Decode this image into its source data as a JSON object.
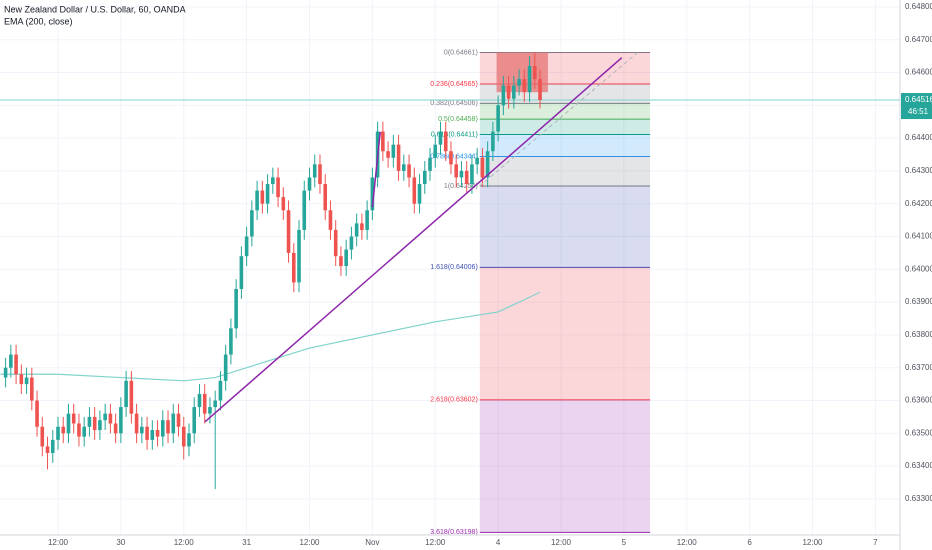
{
  "chart_data": {
    "type": "candlestick",
    "title": "New Zealand Dollar / U.S. Dollar, 60, OANDA",
    "subtitle": "EMA (200, close)",
    "up_color": "#26a69a",
    "down_color": "#ef5350",
    "grid": true,
    "xlim": [
      -11.07,
      160.7
    ],
    "ylim": [
      0.6319,
      0.64821
    ],
    "xticks": [
      {
        "value": 0,
        "label": "12:00"
      },
      {
        "value": 12,
        "label": "30"
      },
      {
        "value": 24,
        "label": "12:00"
      },
      {
        "value": 36,
        "label": "31"
      },
      {
        "value": 48,
        "label": "12:00"
      },
      {
        "value": 60,
        "label": "Nov"
      },
      {
        "value": 72,
        "label": "12:00"
      },
      {
        "value": 84,
        "label": "4"
      },
      {
        "value": 96,
        "label": "12:00"
      },
      {
        "value": 108,
        "label": "5"
      },
      {
        "value": 120,
        "label": "12:00"
      },
      {
        "value": 132,
        "label": "6"
      },
      {
        "value": 144,
        "label": "12:00"
      },
      {
        "value": 156,
        "label": "7"
      }
    ],
    "yticks": [
      {
        "value": 0.648,
        "label": "0.64800"
      },
      {
        "value": 0.647,
        "label": "0.64700"
      },
      {
        "value": 0.646,
        "label": "0.64600"
      },
      {
        "value": 0.645,
        "label": "0.64500"
      },
      {
        "value": 0.644,
        "label": "0.64400"
      },
      {
        "value": 0.643,
        "label": "0.64300"
      },
      {
        "value": 0.642,
        "label": "0.64200"
      },
      {
        "value": 0.641,
        "label": "0.64100"
      },
      {
        "value": 0.64,
        "label": "0.64000"
      },
      {
        "value": 0.639,
        "label": "0.63900"
      },
      {
        "value": 0.638,
        "label": "0.63800"
      },
      {
        "value": 0.637,
        "label": "0.63700"
      },
      {
        "value": 0.636,
        "label": "0.63600"
      },
      {
        "value": 0.635,
        "label": "0.63500"
      },
      {
        "value": 0.634,
        "label": "0.63400"
      },
      {
        "value": 0.633,
        "label": "0.63300"
      }
    ],
    "x": [
      -10,
      -9,
      -8,
      -7,
      -6,
      -5,
      -4,
      -3,
      -2,
      -1,
      0,
      1,
      2,
      3,
      4,
      5,
      6,
      7,
      8,
      9,
      10,
      11,
      12,
      13,
      14,
      15,
      16,
      17,
      18,
      19,
      20,
      21,
      22,
      23,
      24,
      25,
      26,
      27,
      28,
      29,
      30,
      31,
      32,
      33,
      34,
      35,
      36,
      37,
      38,
      39,
      40,
      41,
      42,
      43,
      44,
      45,
      46,
      47,
      48,
      49,
      50,
      51,
      52,
      53,
      54,
      55,
      56,
      57,
      58,
      59,
      60,
      61,
      62,
      63,
      64,
      65,
      66,
      67,
      68,
      69,
      70,
      71,
      72,
      73,
      74,
      75,
      76,
      77,
      78,
      79,
      80,
      81,
      82,
      83,
      84,
      85,
      86,
      87,
      88,
      89,
      90,
      91,
      92
    ],
    "open": [
      0.6367,
      0.637,
      0.6374,
      0.6368,
      0.6365,
      0.6367,
      0.636,
      0.6352,
      0.6346,
      0.6344,
      0.6348,
      0.6352,
      0.635,
      0.6356,
      0.6353,
      0.6349,
      0.6352,
      0.6355,
      0.6351,
      0.6354,
      0.6356,
      0.6353,
      0.635,
      0.6358,
      0.6366,
      0.6356,
      0.635,
      0.6352,
      0.6348,
      0.6351,
      0.6349,
      0.6354,
      0.635,
      0.6356,
      0.6352,
      0.6346,
      0.635,
      0.6358,
      0.6362,
      0.6356,
      0.6358,
      0.636,
      0.6366,
      0.6374,
      0.6382,
      0.6394,
      0.6404,
      0.641,
      0.6418,
      0.6424,
      0.642,
      0.6426,
      0.6428,
      0.6422,
      0.6418,
      0.6405,
      0.6396,
      0.6412,
      0.6424,
      0.6428,
      0.6432,
      0.6426,
      0.6418,
      0.6412,
      0.6404,
      0.6401,
      0.6406,
      0.641,
      0.6414,
      0.6412,
      0.6418,
      0.6428,
      0.6442,
      0.6436,
      0.6434,
      0.6438,
      0.643,
      0.6432,
      0.6428,
      0.642,
      0.6426,
      0.643,
      0.6434,
      0.6438,
      0.6442,
      0.6436,
      0.6432,
      0.6428,
      0.643,
      0.6426,
      0.6432,
      0.6434,
      0.6428,
      0.6436,
      0.6442,
      0.645,
      0.6456,
      0.6452,
      0.6456,
      0.6458,
      0.6454,
      0.6462,
      0.6458
    ],
    "high": [
      0.6373,
      0.6377,
      0.6377,
      0.6371,
      0.637,
      0.637,
      0.6363,
      0.6355,
      0.6349,
      0.6351,
      0.6355,
      0.6355,
      0.6359,
      0.6359,
      0.6356,
      0.6355,
      0.6358,
      0.6358,
      0.6357,
      0.6359,
      0.6359,
      0.6356,
      0.6361,
      0.6369,
      0.6369,
      0.6359,
      0.6355,
      0.6355,
      0.6354,
      0.6354,
      0.6357,
      0.6357,
      0.6359,
      0.6359,
      0.6355,
      0.6353,
      0.6361,
      0.6365,
      0.6365,
      0.6361,
      0.6363,
      0.6369,
      0.6377,
      0.6385,
      0.6397,
      0.6407,
      0.6413,
      0.6421,
      0.6427,
      0.6427,
      0.6429,
      0.6431,
      0.6431,
      0.6425,
      0.6421,
      0.6408,
      0.6415,
      0.6427,
      0.6431,
      0.6435,
      0.6435,
      0.6429,
      0.6421,
      0.6415,
      0.6407,
      0.6409,
      0.6413,
      0.6417,
      0.6417,
      0.6421,
      0.6431,
      0.6445,
      0.6445,
      0.6439,
      0.6441,
      0.6441,
      0.6435,
      0.6435,
      0.6431,
      0.6429,
      0.6433,
      0.6437,
      0.6441,
      0.6445,
      0.6445,
      0.6439,
      0.6435,
      0.6433,
      0.6433,
      0.6435,
      0.6437,
      0.6437,
      0.6439,
      0.6445,
      0.6453,
      0.6459,
      0.6459,
      0.6459,
      0.6461,
      0.6461,
      0.6465,
      0.64661,
      0.6461
    ],
    "low": [
      0.6364,
      0.6367,
      0.6365,
      0.6362,
      0.6362,
      0.6357,
      0.6349,
      0.6343,
      0.6339,
      0.6341,
      0.6345,
      0.6347,
      0.6347,
      0.635,
      0.6346,
      0.6346,
      0.6349,
      0.6348,
      0.6348,
      0.6351,
      0.635,
      0.6347,
      0.6347,
      0.6355,
      0.6353,
      0.6347,
      0.6347,
      0.6345,
      0.6345,
      0.6346,
      0.6346,
      0.6347,
      0.6347,
      0.6349,
      0.6342,
      0.6343,
      0.6347,
      0.6355,
      0.6353,
      0.6353,
      0.6333,
      0.6357,
      0.6363,
      0.6371,
      0.6379,
      0.6391,
      0.6401,
      0.6407,
      0.6415,
      0.6417,
      0.6417,
      0.6423,
      0.6419,
      0.6415,
      0.6402,
      0.6393,
      0.6393,
      0.6409,
      0.6421,
      0.6425,
      0.6423,
      0.6415,
      0.6409,
      0.6401,
      0.6398,
      0.6398,
      0.6403,
      0.6407,
      0.6409,
      0.6409,
      0.6415,
      0.6425,
      0.6433,
      0.6431,
      0.6431,
      0.6427,
      0.6427,
      0.6425,
      0.6417,
      0.6417,
      0.6423,
      0.6427,
      0.6431,
      0.6435,
      0.6433,
      0.6429,
      0.6425,
      0.6425,
      0.6423,
      0.6423,
      0.6429,
      0.6425,
      0.6425,
      0.6433,
      0.6439,
      0.6447,
      0.6449,
      0.6449,
      0.6453,
      0.6451,
      0.6451,
      0.6455,
      0.6449
    ],
    "close": [
      0.637,
      0.6374,
      0.6368,
      0.6365,
      0.6367,
      0.636,
      0.6352,
      0.6346,
      0.6344,
      0.6348,
      0.6352,
      0.635,
      0.6356,
      0.6353,
      0.6349,
      0.6352,
      0.6355,
      0.6351,
      0.6354,
      0.6356,
      0.6353,
      0.635,
      0.6358,
      0.6366,
      0.6356,
      0.635,
      0.6352,
      0.6348,
      0.6351,
      0.6349,
      0.6354,
      0.635,
      0.6356,
      0.6352,
      0.6346,
      0.635,
      0.6358,
      0.6362,
      0.6356,
      0.6358,
      0.636,
      0.6366,
      0.6374,
      0.6382,
      0.6394,
      0.6404,
      0.641,
      0.6418,
      0.6424,
      0.642,
      0.6426,
      0.6428,
      0.6422,
      0.6418,
      0.6405,
      0.6396,
      0.6412,
      0.6424,
      0.6428,
      0.6432,
      0.6426,
      0.6418,
      0.6412,
      0.6404,
      0.6401,
      0.6406,
      0.641,
      0.6414,
      0.6412,
      0.6418,
      0.6428,
      0.6442,
      0.6436,
      0.6434,
      0.6438,
      0.643,
      0.6432,
      0.6428,
      0.642,
      0.6426,
      0.643,
      0.6434,
      0.6438,
      0.6442,
      0.6436,
      0.6432,
      0.6428,
      0.643,
      0.6426,
      0.6432,
      0.6434,
      0.6428,
      0.6436,
      0.6442,
      0.645,
      0.6456,
      0.6452,
      0.6456,
      0.6458,
      0.6454,
      0.6462,
      0.6458,
      0.64516
    ],
    "ema": {
      "color": "#7fd3cc",
      "x": [
        -11,
        0,
        12,
        24,
        30,
        36,
        48,
        60,
        72,
        84,
        88,
        92
      ],
      "values": [
        0.6368,
        0.6368,
        0.6367,
        0.6366,
        0.6367,
        0.637,
        0.6376,
        0.638,
        0.6384,
        0.6387,
        0.639,
        0.6393
      ]
    },
    "trendlines": [
      {
        "color": "#8e24aa",
        "dash": false,
        "x": [
          28.05,
          107.6
        ],
        "values": [
          0.63535,
          0.64645
        ]
      },
      {
        "color": "#8e24aa",
        "dash": false,
        "x": [
          60,
          61.5
        ],
        "values": [
          0.64189,
          0.64419
        ]
      },
      {
        "color": "#b2b5be",
        "dash": true,
        "x": [
          80.5,
          111
        ],
        "values": [
          0.64254,
          0.64666
        ]
      }
    ],
    "fib": {
      "x": [
        80.5,
        113
      ],
      "levels": [
        {
          "value": 0.64661,
          "label": "0(0.64661)",
          "color": "#787b86"
        },
        {
          "value": 0.64565,
          "label": "0.236(0.64565)",
          "color": "#f23645"
        },
        {
          "value": 0.64506,
          "label": "0.382(0.64506)",
          "color": "#787b86"
        },
        {
          "value": 0.64458,
          "label": "0.5(0.64458)",
          "color": "#4caf50"
        },
        {
          "value": 0.64411,
          "label": "0.618(0.64411)",
          "color": "#089981"
        },
        {
          "value": 0.64344,
          "label": "0.786(0.64344)",
          "color": "#2196f3"
        },
        {
          "value": 0.64254,
          "label": "1(0.64254)",
          "color": "#787b86"
        },
        {
          "value": 0.64006,
          "label": "1.618(0.64006)",
          "color": "#3f51b5"
        },
        {
          "value": 0.63602,
          "label": "2.618(0.63602)",
          "color": "#f23645"
        },
        {
          "value": 0.63198,
          "label": "3.618(0.63198)",
          "color": "#9c27b0"
        }
      ]
    },
    "box": {
      "color": "#e57373",
      "x": [
        83.7,
        93.5
      ],
      "values": [
        0.64661,
        0.6454
      ]
    },
    "last_price": {
      "value": 0.64516,
      "label": "0.64516",
      "countdown": "46:51",
      "color": "#26a69a",
      "line_color": "#7fd3cc"
    }
  }
}
